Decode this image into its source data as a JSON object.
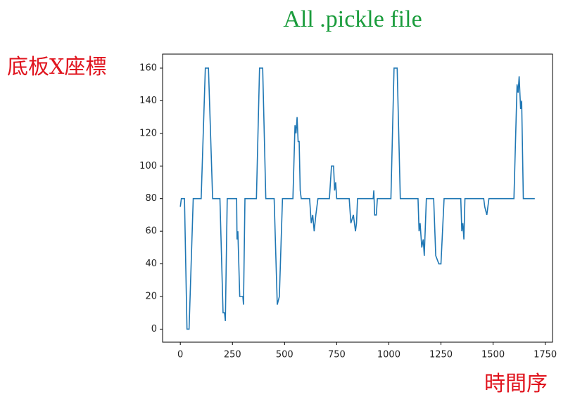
{
  "chart_data": {
    "type": "line",
    "title": "All .pickle file",
    "ylabel": "底板X座標",
    "xlabel": "時間序",
    "xlim": [
      -85,
      1785
    ],
    "ylim": [
      -8,
      168.6
    ],
    "xticks": [
      0,
      250,
      500,
      750,
      1000,
      1250,
      1500,
      1750
    ],
    "yticks": [
      0,
      20,
      40,
      60,
      80,
      100,
      120,
      140,
      160
    ],
    "series": [
      {
        "color": "#1f77b4",
        "x": [
          0,
          5,
          20,
          32,
          42,
          62,
          100,
          120,
          135,
          155,
          190,
          205,
          212,
          216,
          225,
          270,
          272,
          276,
          285,
          300,
          303,
          310,
          365,
          380,
          395,
          410,
          450,
          465,
          475,
          490,
          540,
          550,
          555,
          560,
          565,
          570,
          575,
          580,
          620,
          628,
          635,
          642,
          650,
          660,
          715,
          725,
          735,
          740,
          745,
          750,
          810,
          818,
          830,
          840,
          845,
          850,
          925,
          928,
          932,
          940,
          945,
          1010,
          1025,
          1040,
          1055,
          1140,
          1145,
          1150,
          1158,
          1165,
          1170,
          1180,
          1215,
          1225,
          1240,
          1250,
          1265,
          1345,
          1350,
          1355,
          1360,
          1365,
          1455,
          1460,
          1470,
          1480,
          1600,
          1615,
          1620,
          1625,
          1632,
          1637,
          1645,
          1700
        ],
        "y": [
          75,
          80,
          80,
          0,
          0,
          80,
          80,
          160,
          160,
          80,
          80,
          10,
          10,
          5,
          80,
          80,
          55,
          60,
          20,
          20,
          15,
          80,
          80,
          160,
          160,
          80,
          80,
          15,
          20,
          80,
          80,
          125,
          120,
          130,
          115,
          115,
          85,
          80,
          80,
          65,
          70,
          60,
          70,
          80,
          80,
          100,
          100,
          85,
          90,
          80,
          80,
          65,
          70,
          60,
          65,
          80,
          80,
          85,
          70,
          70,
          80,
          80,
          160,
          160,
          80,
          80,
          60,
          65,
          50,
          55,
          45,
          80,
          80,
          45,
          40,
          40,
          80,
          80,
          60,
          65,
          55,
          80,
          80,
          75,
          70,
          80,
          80,
          150,
          145,
          155,
          135,
          140,
          80,
          80
        ]
      }
    ]
  }
}
